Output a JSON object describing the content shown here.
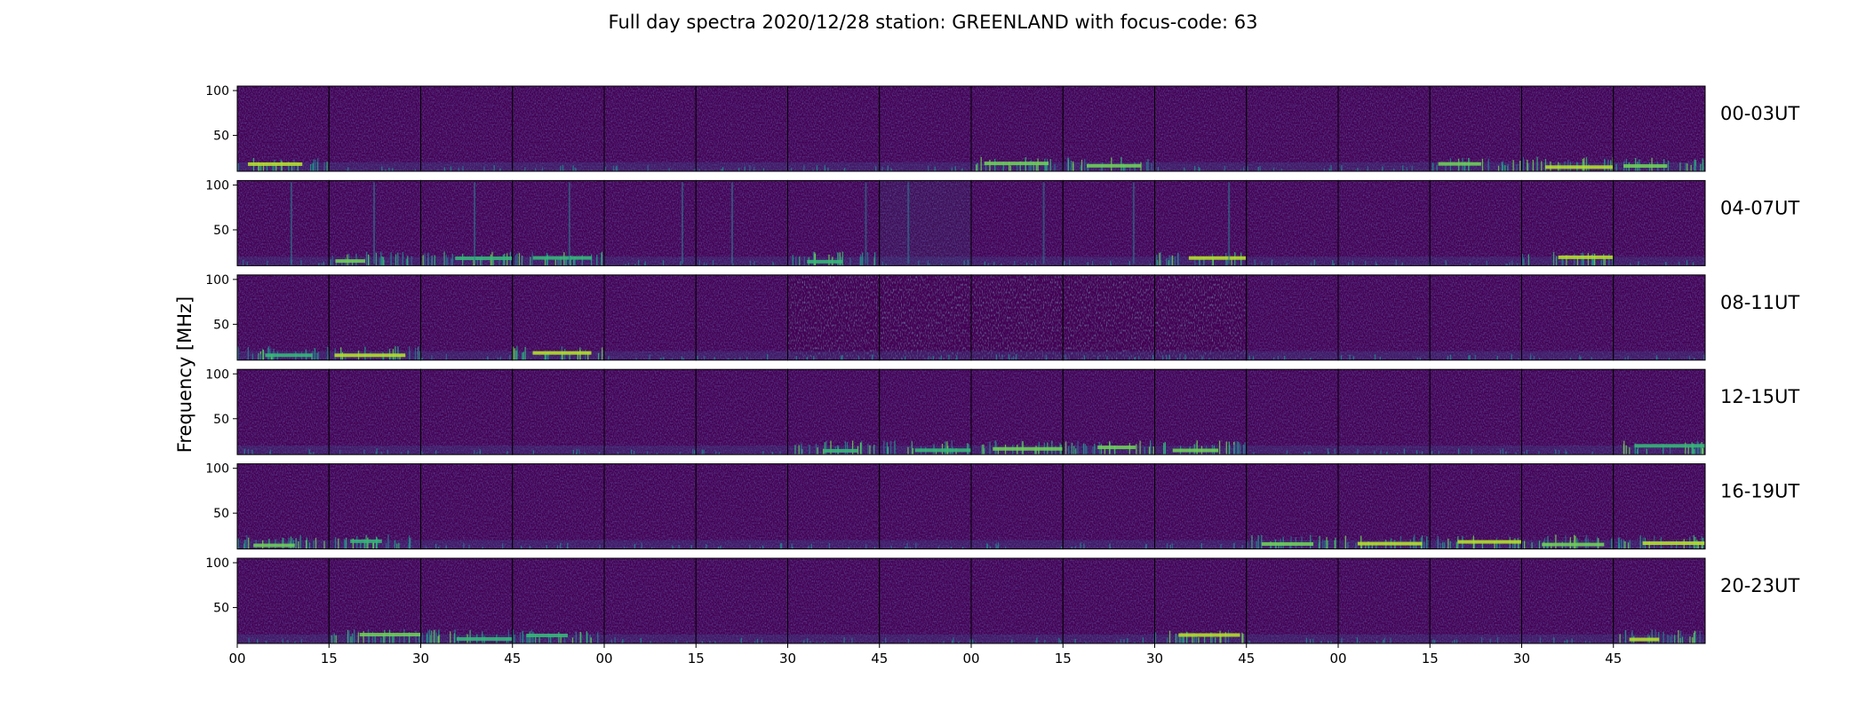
{
  "figure": {
    "title": "Full day spectra 2020/12/28 station: GREENLAND with focus-code: 63"
  },
  "colors": {
    "background": "#ffffff",
    "colormap": "viridis",
    "colormap_stops": [
      "#440154",
      "#482878",
      "#3e4989",
      "#31688e",
      "#26828e",
      "#1f9e89",
      "#35b779",
      "#6ece58",
      "#b5de2b",
      "#fde725"
    ],
    "frame": "#000000"
  },
  "chart_data": {
    "type": "heatmap",
    "title": "Full day spectra 2020/12/28 station: GREENLAND with focus-code: 63",
    "ylabel": "Frequency [MHz]",
    "xlabel": "",
    "ylim": [
      10,
      105
    ],
    "y_ticks": [
      "100",
      "50"
    ],
    "x_tick_labels": [
      "00",
      "15",
      "30",
      "45",
      "00",
      "15",
      "30",
      "45",
      "00",
      "15",
      "30",
      "45",
      "00",
      "15",
      "30",
      "45"
    ],
    "panels_per_row": 16,
    "panel_minutes": 15,
    "grid": false,
    "legend": "none",
    "rows": [
      {
        "label": "00-03UT",
        "bright_low_band": [
          0,
          8,
          9,
          13,
          14,
          15
        ]
      },
      {
        "label": "04-07UT",
        "bright_low_band": [
          1,
          2,
          3,
          6,
          10,
          14
        ],
        "vertical_lines_in_panels": [
          0,
          1,
          2,
          3,
          4,
          5,
          6,
          7,
          8,
          9,
          10
        ]
      },
      {
        "label": "08-11UT",
        "bright_low_band": [
          0,
          1,
          3
        ],
        "noisy_panels": [
          6,
          7,
          8,
          9,
          10
        ]
      },
      {
        "label": "12-15UT",
        "bright_low_band": [
          6,
          7,
          8,
          9,
          10,
          15
        ]
      },
      {
        "label": "16-19UT",
        "bright_low_band": [
          0,
          1,
          11,
          12,
          13,
          14,
          15
        ]
      },
      {
        "label": "20-23UT",
        "bright_low_band": [
          1,
          2,
          3,
          10,
          15
        ]
      }
    ]
  }
}
